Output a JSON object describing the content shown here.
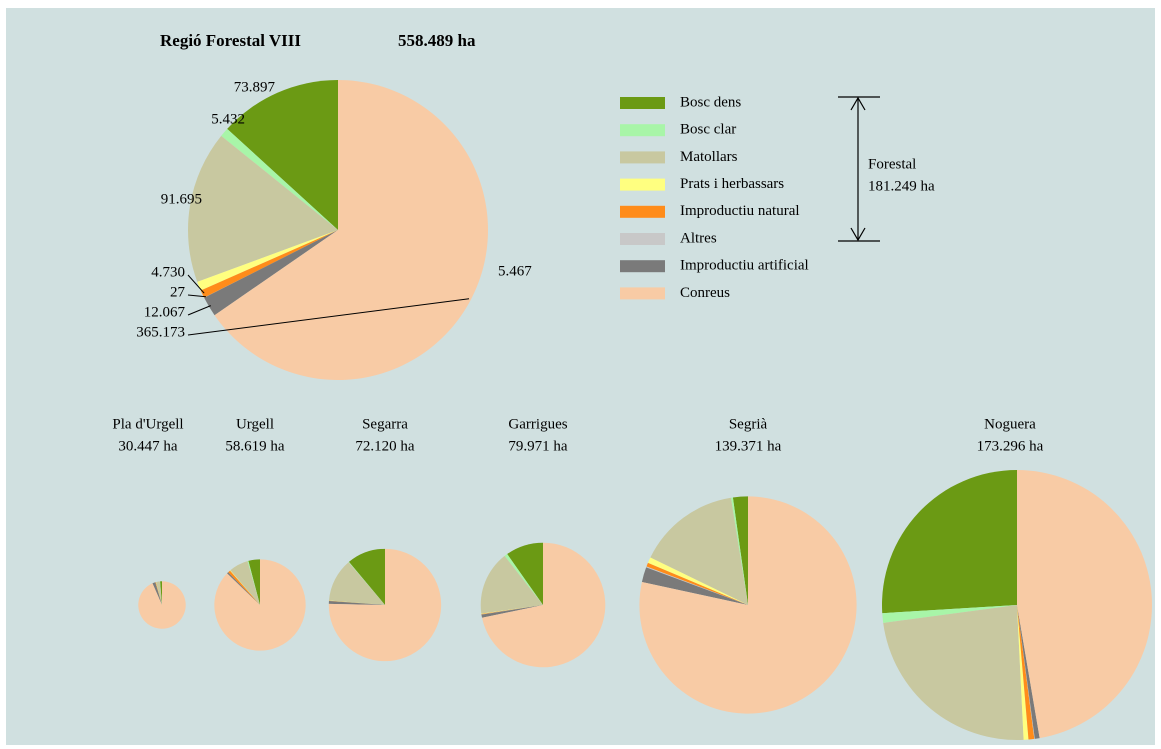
{
  "chart_data": {
    "type": "pie",
    "title": "Regió Forestal VIII",
    "subtitle": "558.489 ha",
    "categories": [
      "Bosc dens",
      "Bosc clar",
      "Matollars",
      "Prats i herbassars",
      "Improductiu natural",
      "Altres",
      "Improductiu artificial",
      "Conreus"
    ],
    "colors": [
      "#6b9a14",
      "#a8f5a8",
      "#c8c8a0",
      "#ffff80",
      "#ff8c1a",
      "#c8c8c8",
      "#7a7a7a",
      "#f8cba5"
    ],
    "values": [
      73897,
      5432,
      91695,
      5467,
      4730,
      27,
      12067,
      365173
    ],
    "value_labels": [
      "73.897",
      "5.432",
      "91.695",
      "5.467",
      "4.730",
      "27",
      "12.067",
      "365.173"
    ],
    "annotation": {
      "label": "Forestal",
      "value_label": "181.249 ha"
    },
    "comarques": [
      {
        "name": "Pla d'Urgell",
        "total": 30447,
        "total_label": "30.447 ha",
        "values": [
          400,
          50,
          800,
          50,
          100,
          5,
          600,
          28442
        ]
      },
      {
        "name": "Urgell",
        "total": 58619,
        "total_label": "58.619 ha",
        "values": [
          2400,
          200,
          4000,
          100,
          500,
          10,
          300,
          51109
        ]
      },
      {
        "name": "Segarra",
        "total": 72120,
        "total_label": "72.120 ha",
        "values": [
          8000,
          100,
          9000,
          50,
          50,
          10,
          600,
          54310
        ]
      },
      {
        "name": "Garrigues",
        "total": 79971,
        "total_label": "79.971 ha",
        "values": [
          7800,
          650,
          13300,
          100,
          100,
          20,
          650,
          57351
        ]
      },
      {
        "name": "Segrià",
        "total": 139371,
        "total_label": "139.371 ha",
        "values": [
          3100,
          400,
          21300,
          1200,
          800,
          200,
          3100,
          109271
        ]
      },
      {
        "name": "Noguera",
        "total": 173296,
        "total_label": "173.296 ha",
        "values": [
          45000,
          2000,
          41000,
          1000,
          1200,
          100,
          1000,
          81996
        ]
      }
    ]
  }
}
